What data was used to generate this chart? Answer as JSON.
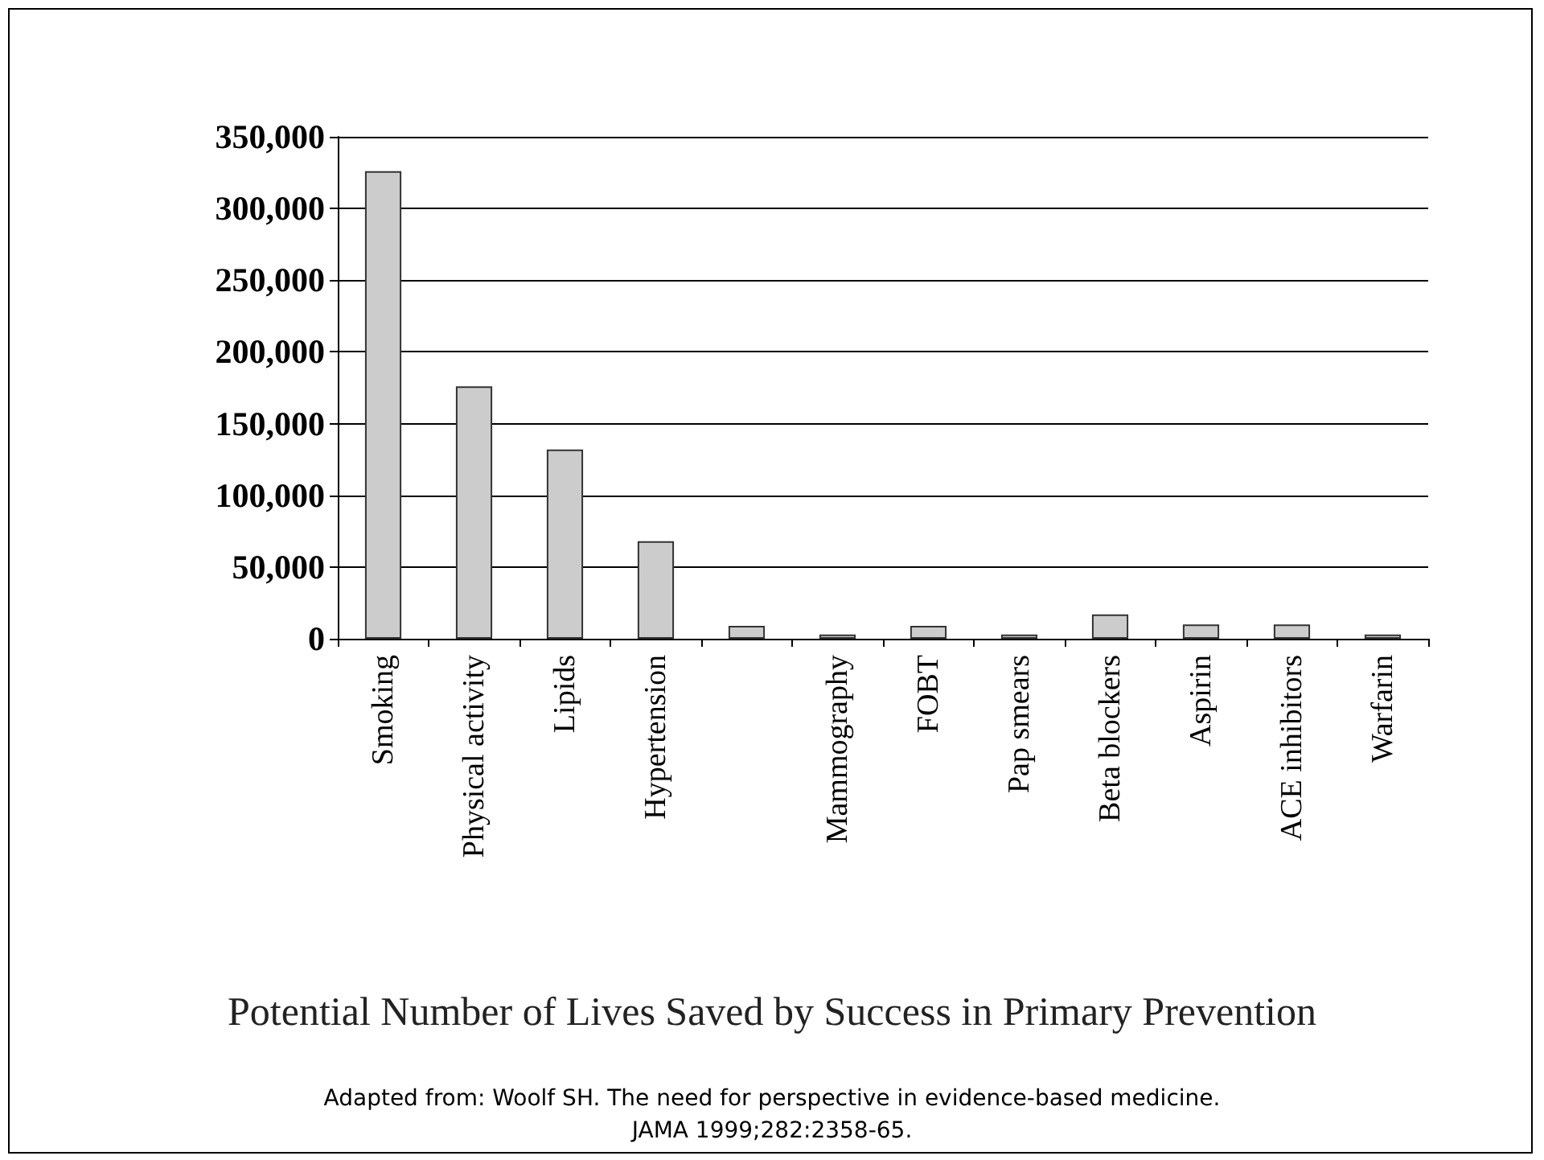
{
  "chart_data": {
    "type": "bar",
    "title": "Potential Number of Lives Saved by Success in Primary Prevention",
    "annotations": [
      "Adapted from: Woolf SH. The need for perspective in evidence-based medicine.\nJAMA 1999;282:2358-65."
    ],
    "categories": [
      "Smoking",
      "Physical activity",
      "Lipids",
      "Hypertension",
      null,
      "Mammography",
      "FOBT",
      "Pap smears",
      "Beta blockers",
      "Aspirin",
      "ACE inhibitors",
      "Warfarin"
    ],
    "values": [
      326000,
      176000,
      132000,
      68000,
      9000,
      3000,
      9000,
      3000,
      17000,
      10000,
      10000,
      3000
    ],
    "color": "#cccccc",
    "ylim": [
      0,
      350000
    ],
    "yticks": [
      0,
      {
        "value": 50000,
        "label": "50,000"
      },
      {
        "value": 100000,
        "label": "100,000"
      },
      {
        "value": 150000,
        "label": "150,000"
      },
      {
        "value": 200000,
        "label": "200,000"
      },
      {
        "value": 250000,
        "label": "250,000"
      },
      {
        "value": 300000,
        "label": "300,000"
      },
      {
        "value": 350000,
        "label": "350,000"
      }
    ],
    "grid": "y"
  }
}
